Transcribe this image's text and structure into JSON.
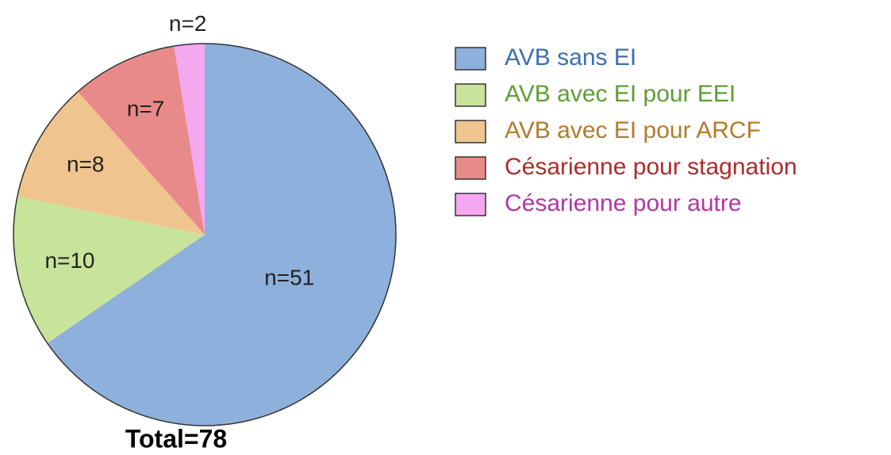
{
  "chart_data": {
    "type": "pie",
    "categories": [
      "AVB sans EI",
      "AVB avec EI pour EEI",
      "AVB avec EI pour ARCF",
      "Césarienne pour stagnation",
      "Césarienne pour autre"
    ],
    "values": [
      51,
      10,
      8,
      7,
      2
    ],
    "value_labels": [
      "n=51",
      "n=10",
      "n=8",
      "n=7",
      "n=2"
    ],
    "colors": [
      "#8eb0dc",
      "#c8e39a",
      "#f0c48e",
      "#e98a8a",
      "#f3a8f0"
    ],
    "legend_text_colors": [
      "#3a6eb4",
      "#5e9e32",
      "#b57a2c",
      "#b02a2a",
      "#b434a8"
    ],
    "annotation": "Total=78",
    "legend": "right"
  }
}
